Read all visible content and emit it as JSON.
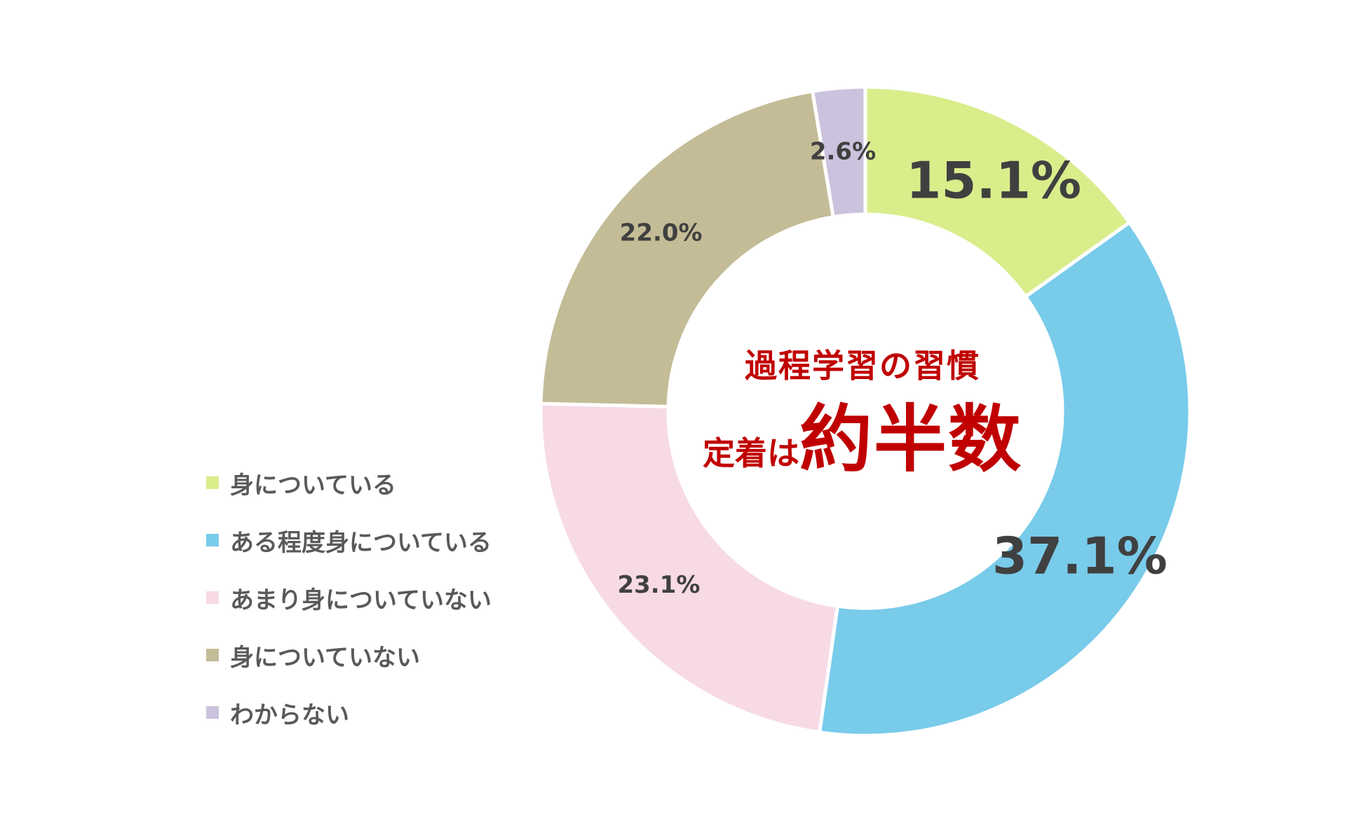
{
  "chart_data": {
    "type": "pie",
    "donut": true,
    "categories": [
      "身についている",
      "ある程度身についている",
      "あまり身についていない",
      "身についていない",
      "わからない"
    ],
    "values": [
      15.1,
      37.1,
      23.1,
      22.0,
      2.6
    ],
    "value_labels": [
      "15.1%",
      "37.1%",
      "23.1%",
      "22.0%",
      "2.6%"
    ],
    "colors": [
      "#d9ed8b",
      "#79cbea",
      "#f7dae6",
      "#c3bc96",
      "#cbc3dd"
    ],
    "legend_position": "left",
    "center_title": "過程学習の習慣",
    "center_subtitle_prefix": "定着は",
    "center_subtitle_emphasis": "約半数",
    "emphasis_color": "#c00000"
  }
}
